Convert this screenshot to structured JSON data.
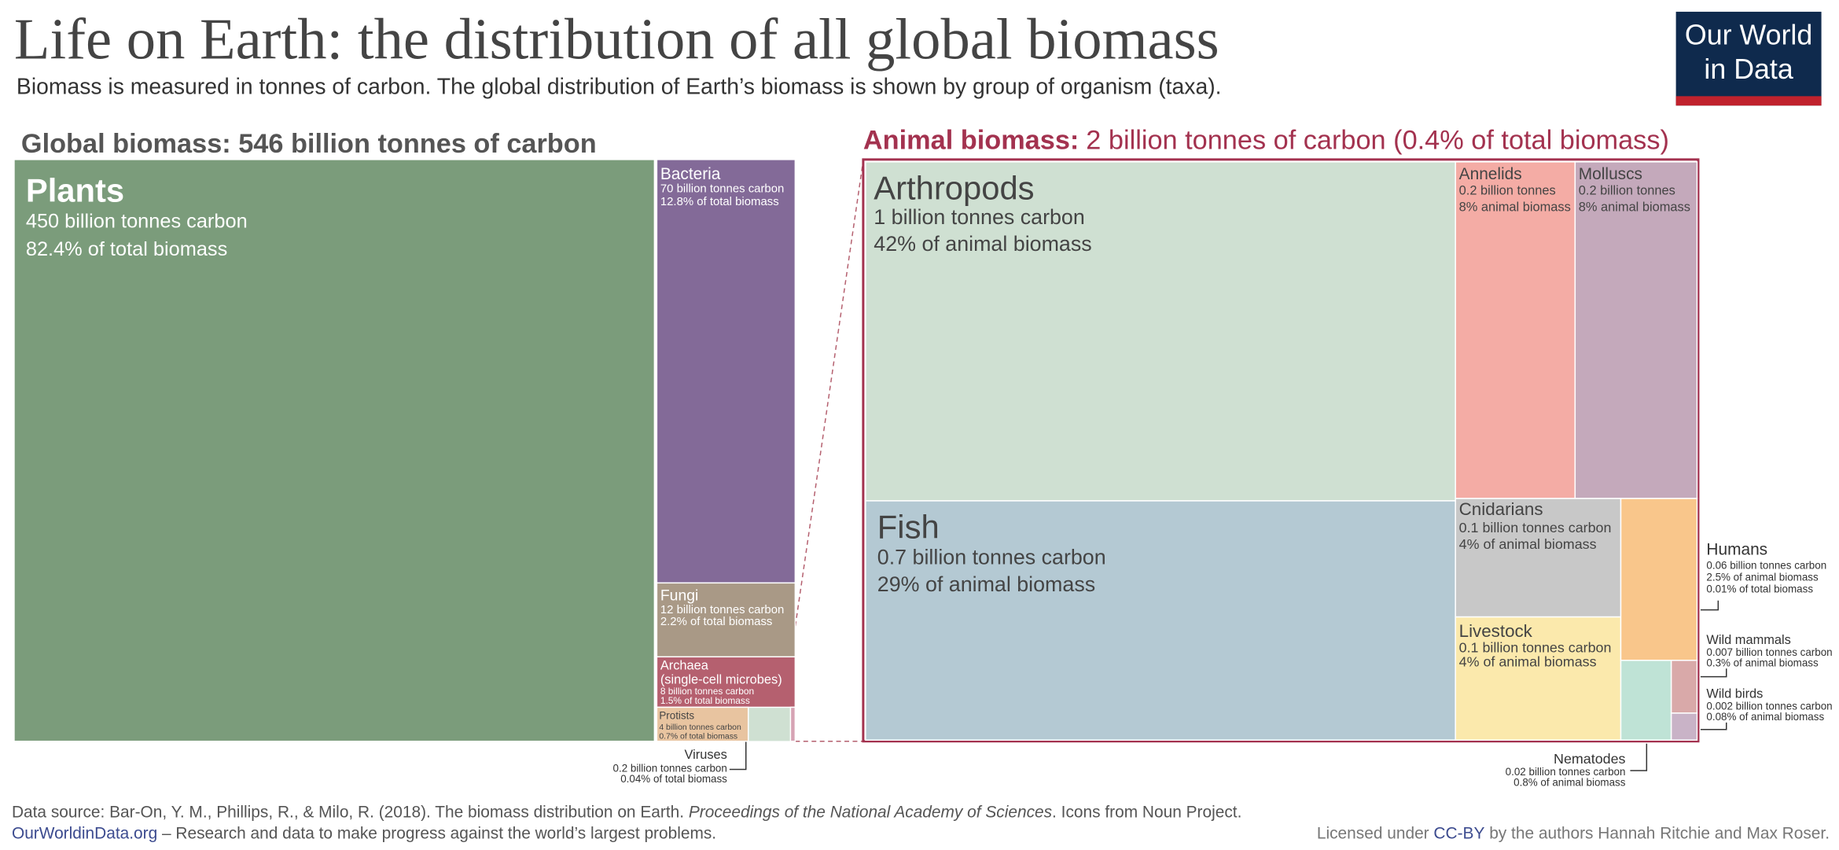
{
  "header": {
    "title": "Life on Earth: the distribution of all global biomass",
    "subtitle": "Biomass is measured in tonnes of carbon. The global distribution of Earth’s biomass is shown by group of organism (taxa).",
    "logo": [
      "Our World",
      "in Data"
    ]
  },
  "chart_data": [
    {
      "type": "treemap",
      "title": "Global biomass: 546 billion tonnes of carbon",
      "items": [
        {
          "name": "Plants",
          "value": 450,
          "value_label": "450 billion tonnes carbon",
          "share": 82.4,
          "share_label": "82.4% of total biomass",
          "color": "#7b9c7b"
        },
        {
          "name": "Bacteria",
          "value": 70,
          "value_label": "70 billion tonnes carbon",
          "share": 12.8,
          "share_label": "12.8% of total biomass",
          "color": "#836a98"
        },
        {
          "name": "Fungi",
          "value": 12,
          "value_label": "12 billion tonnes carbon",
          "share": 2.2,
          "share_label": "2.2% of total biomass",
          "color": "#a99986"
        },
        {
          "name": "Archaea",
          "note": "(single-cell microbes)",
          "value": 8,
          "value_label": "8 billion tonnes carbon",
          "share": 1.5,
          "share_label": "1.5% of total biomass",
          "color": "#b5606f"
        },
        {
          "name": "Protists",
          "value": 4,
          "value_label": "4 billion tonnes carbon",
          "share": 0.7,
          "share_label": "0.7% of total biomass",
          "color": "#e8c4a0"
        },
        {
          "name": "Viruses",
          "value": 0.2,
          "value_label": "0.2 billion tonnes carbon",
          "share": 0.04,
          "share_label": "0.04% of total biomass",
          "color": "#d6a3b4"
        }
      ]
    },
    {
      "type": "treemap",
      "title": "Animal biomass:",
      "total": 2,
      "total_label": "2 billion tonnes of carbon (0.4% of total biomass)",
      "color": "#a3324f",
      "items": [
        {
          "name": "Arthropods",
          "value": 1,
          "value_label": "1 billion tonnes carbon",
          "share": 42,
          "share_label": "42% of animal biomass",
          "color": "#cfe0d2"
        },
        {
          "name": "Fish",
          "value": 0.7,
          "value_label": "0.7 billion tonnes carbon",
          "share": 29,
          "share_label": "29% of animal biomass",
          "color": "#b4c9d3"
        },
        {
          "name": "Annelids",
          "value": 0.2,
          "value_label": "0.2 billion tonnes",
          "share": 8,
          "share_label": "8% animal biomass",
          "color": "#f4aca5"
        },
        {
          "name": "Molluscs",
          "value": 0.2,
          "value_label": "0.2 billion tonnes",
          "share": 8,
          "share_label": "8% animal biomass",
          "color": "#c4a9bb"
        },
        {
          "name": "Cnidarians",
          "value": 0.1,
          "value_label": "0.1 billion tonnes carbon",
          "share": 4,
          "share_label": "4% of animal biomass",
          "color": "#c8c8c8"
        },
        {
          "name": "Livestock",
          "value": 0.1,
          "value_label": "0.1 billion tonnes carbon",
          "share": 4,
          "share_label": "4% of animal biomass",
          "color": "#fbe9ac"
        },
        {
          "name": "Humans",
          "value": 0.06,
          "value_label": "0.06 billion tonnes carbon",
          "share": 2.5,
          "share_label": "2.5% of animal biomass",
          "share_total": 0.01,
          "share_total_label": "0.01% of total biomass",
          "color": "#f9c68b"
        },
        {
          "name": "Nematodes",
          "value": 0.02,
          "value_label": "0.02 billion tonnes carbon",
          "share": 0.8,
          "share_label": "0.8% of animal biomass",
          "color": "#bfe3d6"
        },
        {
          "name": "Wild mammals",
          "value": 0.007,
          "value_label": "0.007 billion tonnes carbon",
          "share": 0.3,
          "share_label": "0.3% of animal biomass",
          "color": "#d9a9a9"
        },
        {
          "name": "Wild birds",
          "value": 0.002,
          "value_label": "0.002 billion tonnes carbon",
          "share": 0.08,
          "share_label": "0.08% of animal biomass",
          "color": "#c9b3c7"
        }
      ]
    }
  ],
  "footer": {
    "source": "Data source: Bar-On, Y. M., Phillips, R., & Milo, R. (2018). The biomass distribution on Earth. ",
    "journal": "Proceedings of the National Academy of Sciences",
    "source_end": ". Icons from Noun Project.",
    "site": "OurWorldinData.org",
    "tagline": " – Research and data to make progress against the world’s largest problems.",
    "license_pre": "Licensed under ",
    "license": "CC-BY",
    "license_post": " by the authors Hannah Ritchie and Max Roser."
  }
}
